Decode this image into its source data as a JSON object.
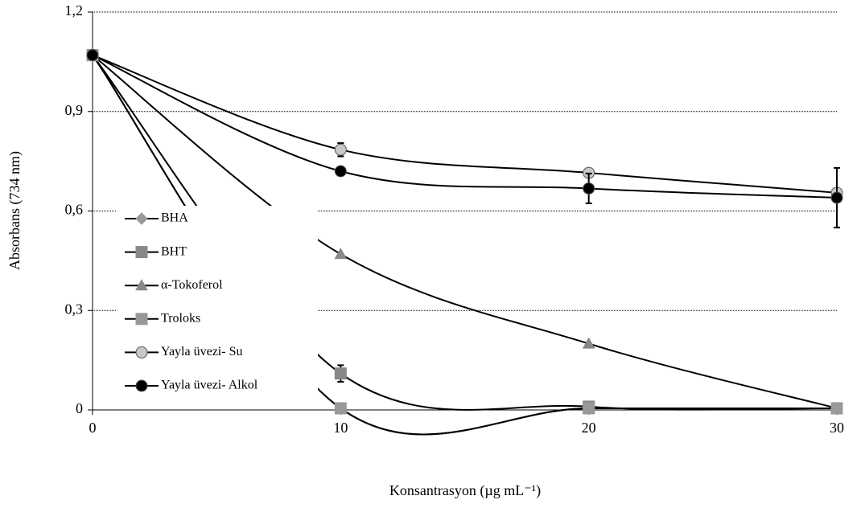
{
  "chart_data": {
    "type": "line",
    "x_label": "Konsantrasyon  (µg mL⁻¹)",
    "y_label": "Absorbans  (734 nm)",
    "x": [
      0,
      10,
      20,
      30
    ],
    "xlim": [
      0,
      30
    ],
    "xticks": [
      0,
      10,
      20,
      30
    ],
    "ylim": [
      0,
      1.2
    ],
    "yticks": [
      0,
      {
        "value": 0.3,
        "label": "0,3"
      },
      {
        "value": 0.6,
        "label": "0,6"
      },
      {
        "value": 0.9,
        "label": "0,9"
      },
      {
        "value": 1.2,
        "label": "1,2"
      }
    ],
    "grid": true,
    "legend": "lower left",
    "series": [
      {
        "name": "BHA",
        "color": "#999999",
        "marker": "diamond",
        "values": [
          1.07,
          0.005,
          0.005,
          0.005
        ],
        "errors": [
          null,
          null,
          null,
          null
        ]
      },
      {
        "name": "BHT",
        "color": "#888888",
        "marker": "square",
        "values": [
          1.07,
          0.11,
          0.01,
          0.005
        ],
        "errors": [
          null,
          0.025,
          null,
          null
        ]
      },
      {
        "name": "α-Tokoferol",
        "color": "#888888",
        "marker": "triangle",
        "values": [
          1.07,
          0.47,
          0.2,
          0.005
        ],
        "errors": [
          null,
          null,
          null,
          null
        ]
      },
      {
        "name": "Troloks",
        "color": "#999999",
        "marker": "square",
        "values": [
          1.07,
          0.005,
          0.005,
          0.005
        ],
        "errors": [
          null,
          null,
          null,
          null
        ]
      },
      {
        "name": "Yayla üvezi- Su",
        "color": "#c8c8c8",
        "marker": "circle",
        "values": [
          1.07,
          0.785,
          0.715,
          0.655
        ],
        "errors": [
          null,
          0.02,
          null,
          null
        ]
      },
      {
        "name": "Yayla üvezi- Alkol",
        "color": "#000000",
        "marker": "circle",
        "values": [
          1.07,
          0.72,
          0.668,
          0.64
        ],
        "errors": [
          null,
          null,
          0.045,
          0.09
        ]
      }
    ]
  }
}
